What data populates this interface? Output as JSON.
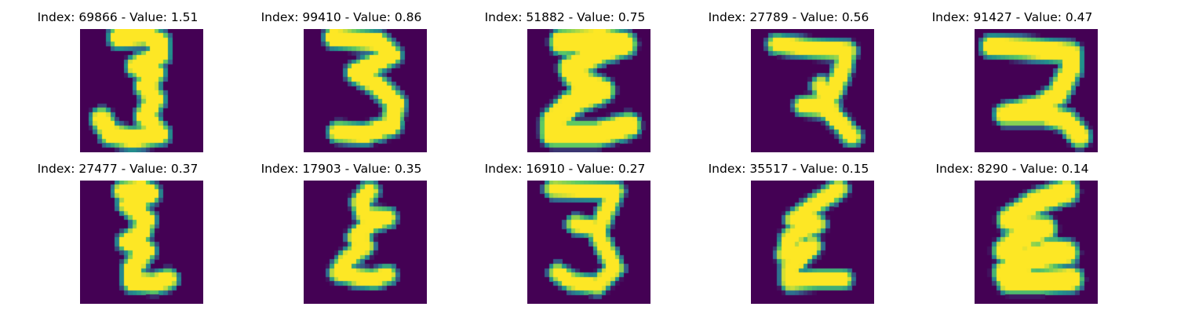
{
  "colors": {
    "background": "#440154",
    "mid_low": "#31688e",
    "mid": "#21918c",
    "mid_high": "#5ec962",
    "foreground": "#fde725"
  },
  "panels": [
    {
      "title": "Index: 69866 - Value: 1.51",
      "index": 69866,
      "value": 1.51,
      "glyph": "3"
    },
    {
      "title": "Index: 99410 - Value: 0.86",
      "index": 99410,
      "value": 0.86,
      "glyph": "3"
    },
    {
      "title": "Index: 51882 - Value: 0.75",
      "index": 51882,
      "value": 0.75,
      "glyph": "Ɛ"
    },
    {
      "title": "Index: 27789 - Value: 0.56",
      "index": 27789,
      "value": 0.56,
      "glyph": "7"
    },
    {
      "title": "Index: 91427 - Value: 0.47",
      "index": 91427,
      "value": 0.47,
      "glyph": "7"
    },
    {
      "title": "Index: 27477 - Value: 0.37",
      "index": 27477,
      "value": 0.37,
      "glyph": "Ɛ"
    },
    {
      "title": "Index: 17903 - Value: 0.35",
      "index": 17903,
      "value": 0.35,
      "glyph": "Ɛ"
    },
    {
      "title": "Index: 16910 - Value: 0.27",
      "index": 16910,
      "value": 0.27,
      "glyph": "3"
    },
    {
      "title": "Index: 35517 - Value: 0.15",
      "index": 35517,
      "value": 0.15,
      "glyph": "Ɛ"
    },
    {
      "title": "Index: 8290 - Value: 0.14",
      "index": 8290,
      "value": 0.14,
      "glyph": "Ɛ"
    }
  ]
}
